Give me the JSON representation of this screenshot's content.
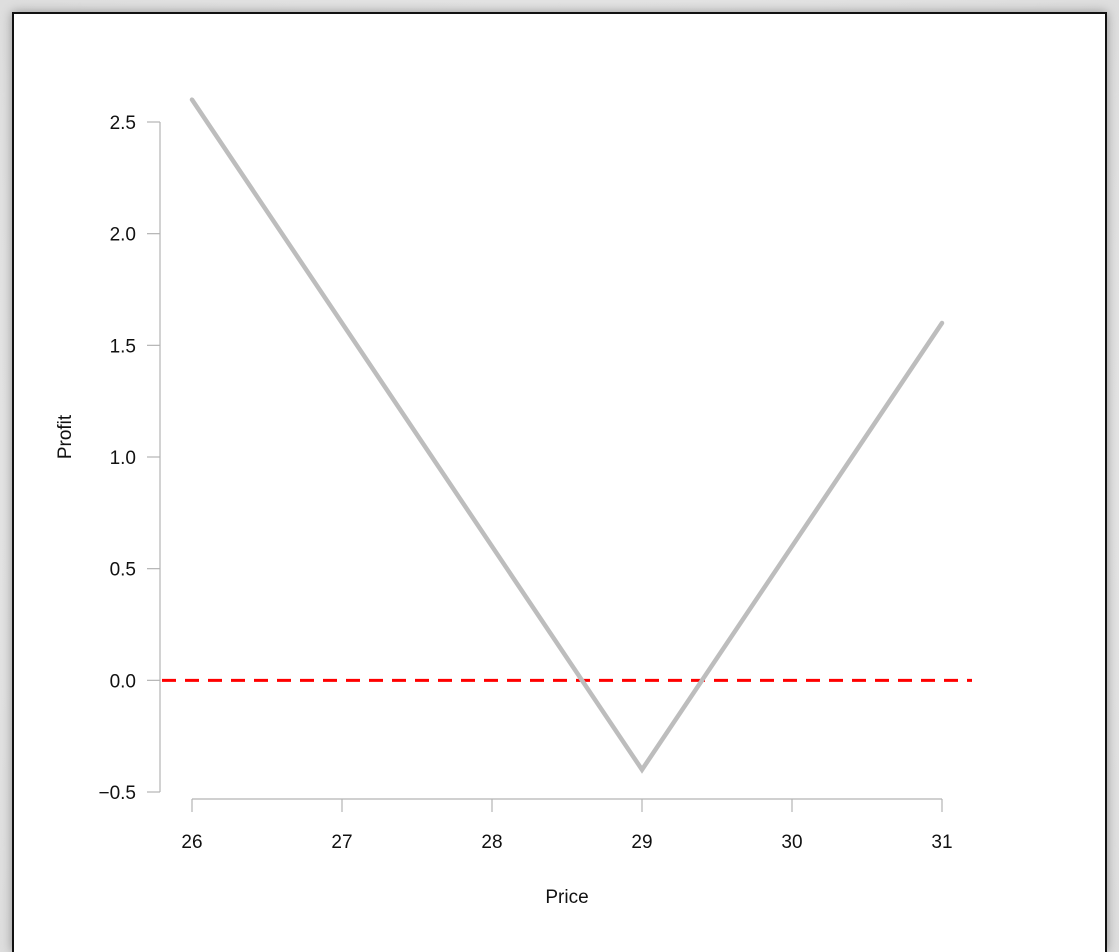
{
  "chart_data": {
    "type": "line",
    "title": "",
    "xlabel": "Price",
    "ylabel": "Profit",
    "xlim": [
      26,
      31
    ],
    "ylim": [
      -0.5,
      2.5
    ],
    "x_ticks": [
      26,
      27,
      28,
      29,
      30,
      31
    ],
    "y_ticks": [
      -0.5,
      0.0,
      0.5,
      1.0,
      1.5,
      2.0,
      2.5
    ],
    "x_tick_labels": [
      "26",
      "27",
      "28",
      "29",
      "30",
      "31"
    ],
    "y_tick_labels": [
      "−0.5",
      "0.0",
      "0.5",
      "1.0",
      "1.5",
      "2.0",
      "2.5"
    ],
    "grid": false,
    "series": [
      {
        "x": [
          26,
          29,
          31
        ],
        "y": [
          2.6,
          -0.4,
          1.6
        ],
        "color": "#bdbdbd"
      }
    ],
    "reference_lines": [
      {
        "orientation": "horizontal",
        "y": 0.0,
        "color": "#ff0000",
        "style": "dashed"
      }
    ]
  }
}
